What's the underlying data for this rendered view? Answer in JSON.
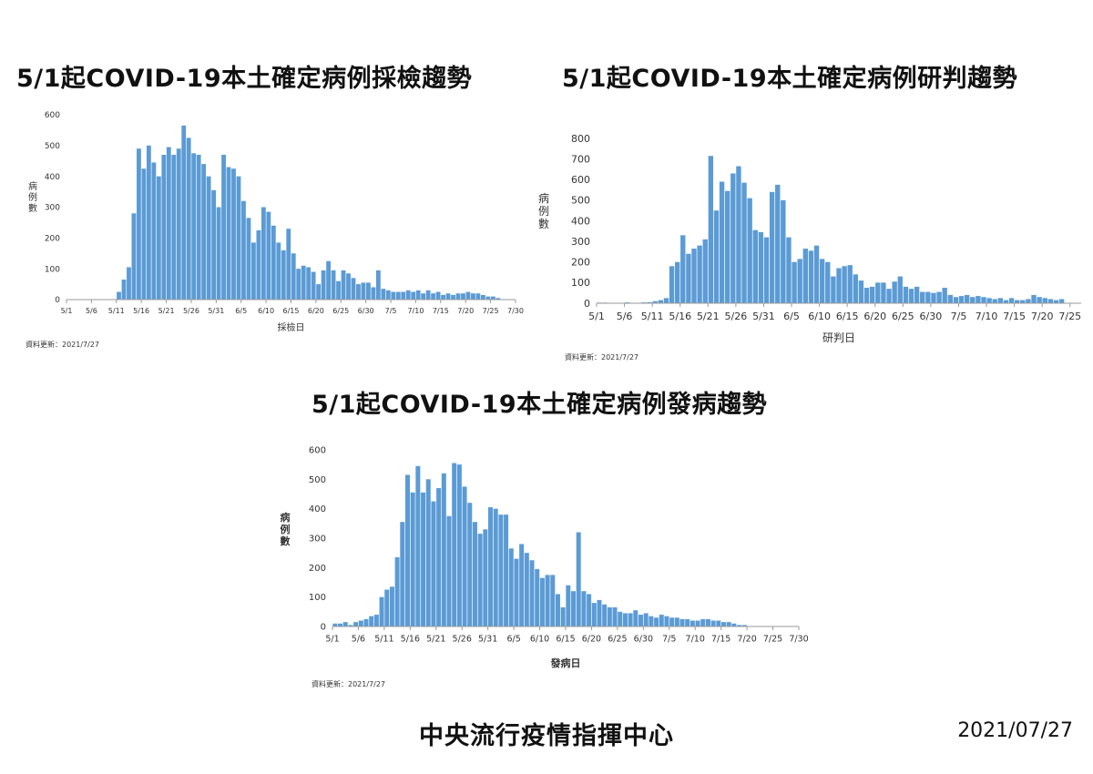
{
  "footer": {
    "organization": "中央流行疫情指揮中心",
    "date": "2021/07/27"
  },
  "chart_data": [
    {
      "type": "bar",
      "title": "5/1起COVID-19本土確定病例採檢趨勢",
      "xlabel": "採檢日",
      "ylabel": "病例數",
      "ylim": [
        0,
        600
      ],
      "yticks": [
        0,
        100,
        200,
        300,
        400,
        500,
        600
      ],
      "xlim_day": [
        1,
        91
      ],
      "xticks": [
        {
          "label": "5/1",
          "day": 1
        },
        {
          "label": "5/6",
          "day": 6
        },
        {
          "label": "5/11",
          "day": 11
        },
        {
          "label": "5/16",
          "day": 16
        },
        {
          "label": "5/21",
          "day": 21
        },
        {
          "label": "5/26",
          "day": 26
        },
        {
          "label": "5/31",
          "day": 31
        },
        {
          "label": "6/5",
          "day": 36
        },
        {
          "label": "6/10",
          "day": 41
        },
        {
          "label": "6/15",
          "day": 46
        },
        {
          "label": "6/20",
          "day": 51
        },
        {
          "label": "6/25",
          "day": 56
        },
        {
          "label": "6/30",
          "day": 61
        },
        {
          "label": "7/5",
          "day": 66
        },
        {
          "label": "7/10",
          "day": 71
        },
        {
          "label": "7/15",
          "day": 76
        },
        {
          "label": "7/20",
          "day": 81
        },
        {
          "label": "7/25",
          "day": 86
        },
        {
          "label": "7/30",
          "day": 91
        }
      ],
      "start_day": 11,
      "values": [
        25,
        65,
        105,
        280,
        490,
        425,
        500,
        445,
        400,
        470,
        495,
        470,
        490,
        565,
        525,
        475,
        470,
        440,
        400,
        355,
        300,
        470,
        430,
        425,
        400,
        320,
        265,
        185,
        225,
        300,
        285,
        240,
        185,
        160,
        230,
        150,
        100,
        110,
        105,
        90,
        50,
        95,
        125,
        95,
        60,
        95,
        85,
        70,
        50,
        55,
        55,
        40,
        95,
        35,
        30,
        25,
        25,
        25,
        30,
        25,
        30,
        20,
        30,
        20,
        25,
        15,
        20,
        15,
        20,
        20,
        25,
        20,
        20,
        15,
        10,
        10,
        5
      ],
      "source_note": "資料更新：2021/7/27"
    },
    {
      "type": "bar",
      "title": "5/1起COVID-19本土確定病例研判趨勢",
      "xlabel": "研判日",
      "ylabel": "病例數",
      "ylim": [
        0,
        800
      ],
      "yticks": [
        0,
        100,
        200,
        300,
        400,
        500,
        600,
        700,
        800
      ],
      "xlim_day": [
        1,
        88
      ],
      "xticks": [
        {
          "label": "5/1",
          "day": 1
        },
        {
          "label": "5/6",
          "day": 6
        },
        {
          "label": "5/11",
          "day": 11
        },
        {
          "label": "5/16",
          "day": 16
        },
        {
          "label": "5/21",
          "day": 21
        },
        {
          "label": "5/26",
          "day": 26
        },
        {
          "label": "5/31",
          "day": 31
        },
        {
          "label": "6/5",
          "day": 36
        },
        {
          "label": "6/10",
          "day": 41
        },
        {
          "label": "6/15",
          "day": 46
        },
        {
          "label": "6/20",
          "day": 51
        },
        {
          "label": "6/25",
          "day": 56
        },
        {
          "label": "6/30",
          "day": 61
        },
        {
          "label": "7/5",
          "day": 66
        },
        {
          "label": "7/10",
          "day": 71
        },
        {
          "label": "7/15",
          "day": 76
        },
        {
          "label": "7/20",
          "day": 81
        },
        {
          "label": "7/25",
          "day": 86
        }
      ],
      "start_day": 1,
      "values": [
        3,
        3,
        2,
        2,
        1,
        4,
        2,
        1,
        4,
        5,
        10,
        15,
        25,
        180,
        200,
        330,
        240,
        265,
        280,
        310,
        715,
        450,
        590,
        545,
        630,
        665,
        585,
        510,
        355,
        345,
        320,
        540,
        575,
        500,
        320,
        200,
        215,
        265,
        255,
        280,
        215,
        200,
        130,
        170,
        180,
        185,
        140,
        110,
        75,
        80,
        100,
        100,
        70,
        105,
        130,
        80,
        70,
        80,
        55,
        55,
        50,
        55,
        75,
        40,
        30,
        35,
        40,
        30,
        35,
        30,
        25,
        20,
        25,
        15,
        25,
        15,
        15,
        20,
        40,
        30,
        25,
        20,
        15,
        20
      ],
      "source_note": "資料更新：2021/7/27"
    },
    {
      "type": "bar",
      "title": "5/1起COVID-19本土確定病例發病趨勢",
      "xlabel": "發病日",
      "ylabel": "病例數",
      "ylim": [
        0,
        600
      ],
      "yticks": [
        0,
        100,
        200,
        300,
        400,
        500,
        600
      ],
      "xlim_day": [
        1,
        91
      ],
      "xticks": [
        {
          "label": "5/1",
          "day": 1
        },
        {
          "label": "5/6",
          "day": 6
        },
        {
          "label": "5/11",
          "day": 11
        },
        {
          "label": "5/16",
          "day": 16
        },
        {
          "label": "5/21",
          "day": 21
        },
        {
          "label": "5/26",
          "day": 26
        },
        {
          "label": "5/31",
          "day": 31
        },
        {
          "label": "6/5",
          "day": 36
        },
        {
          "label": "6/10",
          "day": 41
        },
        {
          "label": "6/15",
          "day": 46
        },
        {
          "label": "6/20",
          "day": 51
        },
        {
          "label": "6/25",
          "day": 56
        },
        {
          "label": "6/30",
          "day": 61
        },
        {
          "label": "7/5",
          "day": 66
        },
        {
          "label": "7/10",
          "day": 71
        },
        {
          "label": "7/15",
          "day": 76
        },
        {
          "label": "7/20",
          "day": 81
        },
        {
          "label": "7/25",
          "day": 86
        },
        {
          "label": "7/30",
          "day": 91
        }
      ],
      "start_day": 1,
      "values": [
        10,
        10,
        15,
        5,
        15,
        20,
        25,
        35,
        40,
        100,
        125,
        135,
        235,
        355,
        515,
        455,
        545,
        455,
        500,
        425,
        470,
        520,
        375,
        555,
        550,
        475,
        420,
        355,
        315,
        330,
        405,
        400,
        380,
        380,
        265,
        230,
        280,
        250,
        225,
        195,
        165,
        175,
        175,
        110,
        65,
        140,
        120,
        320,
        120,
        110,
        80,
        90,
        75,
        65,
        65,
        50,
        45,
        45,
        55,
        40,
        45,
        35,
        30,
        40,
        35,
        30,
        30,
        25,
        25,
        20,
        20,
        25,
        25,
        20,
        20,
        15,
        15,
        10,
        5,
        5
      ],
      "source_note": "資料更新：2021/7/27"
    }
  ]
}
